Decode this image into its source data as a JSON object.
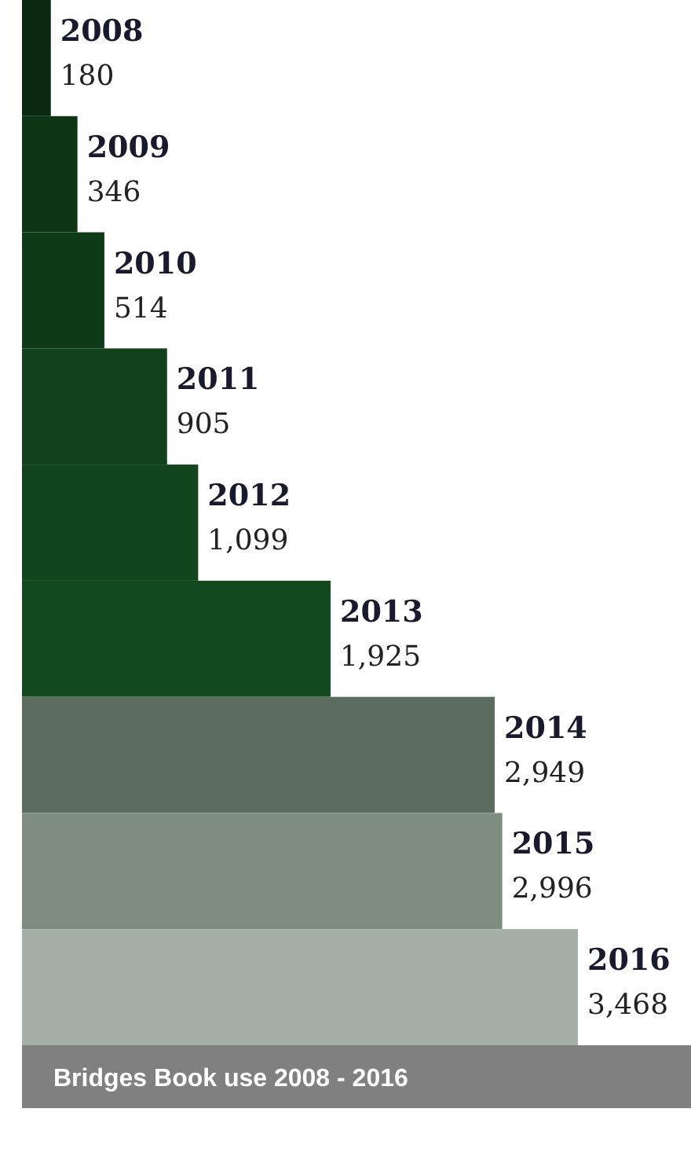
{
  "chart_data": {
    "type": "bar",
    "orientation": "horizontal",
    "title": "Bridges Book use 2008 - 2016",
    "categories": [
      "2008",
      "2009",
      "2010",
      "2011",
      "2012",
      "2013",
      "2014",
      "2015",
      "2016"
    ],
    "values": [
      180,
      346,
      514,
      905,
      1099,
      1925,
      2949,
      2996,
      3468
    ],
    "value_labels": [
      "180",
      "346",
      "514",
      "905",
      "1,099",
      "1,925",
      "2,949",
      "2,996",
      "3,468"
    ],
    "colors": [
      "#0a2a10",
      "#0d3515",
      "#0f3a18",
      "#11411b",
      "#12451d",
      "#13491e",
      "#5c6c5e",
      "#7f8d81",
      "#a4afa6"
    ]
  }
}
